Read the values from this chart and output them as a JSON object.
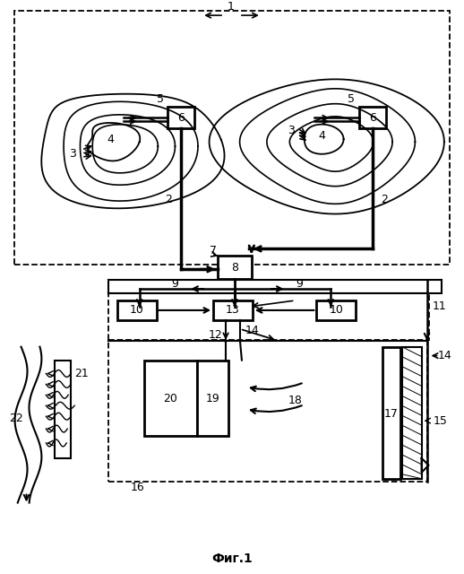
{
  "title": "Фиг.1",
  "bg_color": "#ffffff",
  "line_color": "#000000",
  "figsize": [
    5.18,
    6.4
  ],
  "dpi": 100
}
